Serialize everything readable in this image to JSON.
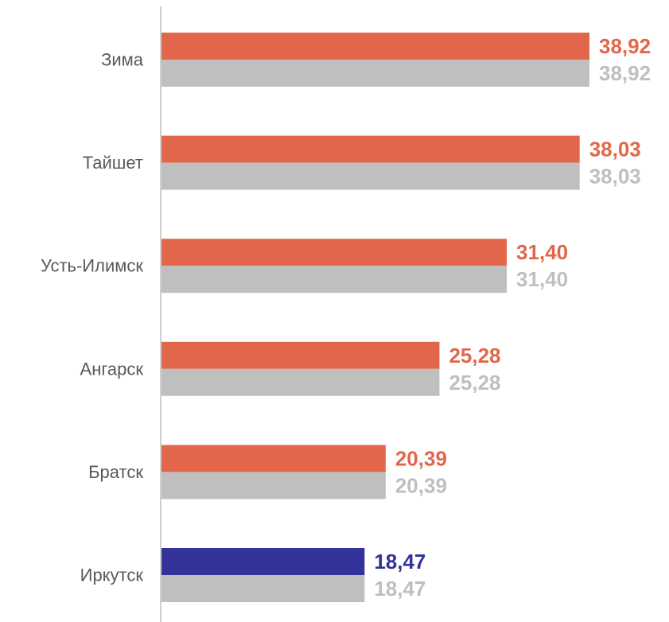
{
  "chart_data": {
    "type": "bar",
    "orientation": "horizontal",
    "title": "",
    "xlabel": "",
    "ylabel": "",
    "categories": [
      "Зима",
      "Тайшет",
      "Усть-Илимск",
      "Ангарск",
      "Братск",
      "Иркутск"
    ],
    "series": [
      {
        "values": [
          38.92,
          38.03,
          31.4,
          25.28,
          20.39,
          18.47
        ],
        "labels": [
          "38,92",
          "38,03",
          "31,40",
          "25,28",
          "20,39",
          "18,47"
        ],
        "colors": [
          "#E2674A",
          "#E2674A",
          "#E2674A",
          "#E2674A",
          "#E2674A",
          "#333399"
        ]
      },
      {
        "values": [
          38.92,
          38.03,
          31.4,
          25.28,
          20.39,
          18.47
        ],
        "labels": [
          "38,92",
          "38,03",
          "31,40",
          "25,28",
          "20,39",
          "18,47"
        ],
        "colors": [
          "#BFBFBF",
          "#BFBFBF",
          "#BFBFBF",
          "#BFBFBF",
          "#BFBFBF",
          "#BFBFBF"
        ]
      }
    ],
    "xlim": [
      0,
      38.92
    ],
    "grid": false,
    "legend": "none"
  }
}
